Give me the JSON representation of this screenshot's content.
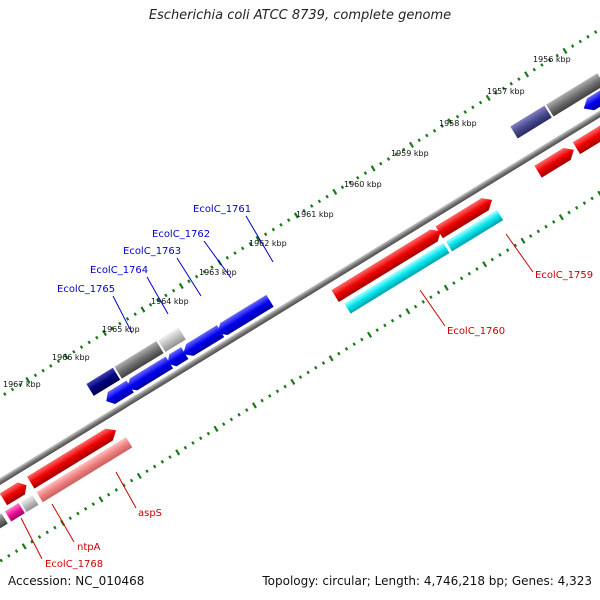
{
  "title": "Escherichia coli ATCC 8739, complete genome",
  "footer": {
    "accession": "Accession: NC_010468",
    "summary": "Topology: circular; Length: 4,746,218 bp; Genes: 4,323"
  },
  "ticks": [
    {
      "label": "1956 kbp",
      "pos": 1956
    },
    {
      "label": "1957 kbp",
      "pos": 1957
    },
    {
      "label": "1958 kbp",
      "pos": 1958
    },
    {
      "label": "1959 kbp",
      "pos": 1959
    },
    {
      "label": "1960 kbp",
      "pos": 1960
    },
    {
      "label": "1961 kbp",
      "pos": 1961
    },
    {
      "label": "1962 kbp",
      "pos": 1962
    },
    {
      "label": "1963 kbp",
      "pos": 1963
    },
    {
      "label": "1964 kbp",
      "pos": 1964
    },
    {
      "label": "1965 kbp",
      "pos": 1965
    },
    {
      "label": "1966 kbp",
      "pos": 1966
    },
    {
      "label": "1967 kbp",
      "pos": 1967
    }
  ],
  "gene_labels": [
    {
      "text": "EcolC_1761",
      "strand": "reverse",
      "color": "#0000cc"
    },
    {
      "text": "EcolC_1762",
      "strand": "reverse",
      "color": "#0000cc"
    },
    {
      "text": "EcolC_1763",
      "strand": "reverse",
      "color": "#0000cc"
    },
    {
      "text": "EcolC_1764",
      "strand": "reverse",
      "color": "#0000cc"
    },
    {
      "text": "EcolC_1765",
      "strand": "reverse",
      "color": "#0000cc"
    },
    {
      "text": "EcolC_1759",
      "strand": "forward",
      "color": "#cc0000"
    },
    {
      "text": "EcolC_1760",
      "strand": "forward",
      "color": "#cc0000"
    },
    {
      "text": "aspS",
      "strand": "forward",
      "color": "#cc0000"
    },
    {
      "text": "ntpA",
      "strand": "forward",
      "color": "#cc0000"
    },
    {
      "text": "EcolC_1768",
      "strand": "forward",
      "color": "#cc0000"
    }
  ],
  "colors": {
    "backbone": "#7a7a7a",
    "tick": "#1a7a1a",
    "forward_cds": "#ee0000",
    "reverse_cds": "#0000ee",
    "cog_light_red": "#f08080",
    "cog_cyan": "#00e5ee",
    "cog_gray": "#707070",
    "cog_light_gray": "#c0c0c0",
    "cog_navy": "#000080",
    "cog_slate": "#4a4a90",
    "cog_magenta": "#ee1199"
  }
}
